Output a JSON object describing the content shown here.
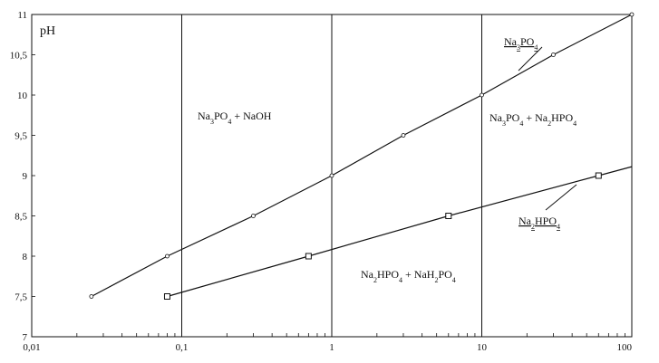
{
  "chart_data": {
    "type": "line",
    "ylabel": "pH",
    "x_scale": "log",
    "xlim": [
      0.01,
      100
    ],
    "ylim": [
      7,
      11
    ],
    "grid": "vertical-at-decades",
    "x_tick_labels": [
      "0,01",
      "0,1",
      "1",
      "10",
      "100"
    ],
    "y_tick_labels": [
      "7",
      "7,5",
      "8",
      "8,5",
      "9",
      "9,5",
      "10",
      "10,5",
      "11"
    ],
    "x_ticks": [
      0.01,
      0.1,
      1,
      10,
      100
    ],
    "y_ticks": [
      7,
      7.5,
      8,
      8.5,
      9,
      9.5,
      10,
      10.5,
      11
    ],
    "series": [
      {
        "name": "Na3PO4",
        "marker": "circle",
        "x": [
          0.025,
          0.08,
          0.3,
          1.0,
          3.0,
          10.0,
          30.0,
          100.0
        ],
        "y": [
          7.5,
          8.0,
          8.5,
          9.0,
          9.5,
          10.0,
          10.5,
          11.0
        ]
      },
      {
        "name": "Na2HPO4",
        "marker": "square",
        "x": [
          0.08,
          0.7,
          6.0,
          60.0
        ],
        "y": [
          7.5,
          8.0,
          8.5,
          9.0
        ]
      }
    ],
    "annotations": [
      {
        "text": "Na3PO4 + NaOH",
        "x": 0.4,
        "y": 9.8
      },
      {
        "text": "Na3PO4 + Na2HPO4",
        "x": 25,
        "y": 9.6
      },
      {
        "text": "Na2HPO4 + NaH2PO4",
        "x": 6.5,
        "y": 7.8
      }
    ],
    "labels": {
      "na3po4_curve": "Na3PO4",
      "na2hpo4_curve": "Na2HPO4"
    }
  }
}
